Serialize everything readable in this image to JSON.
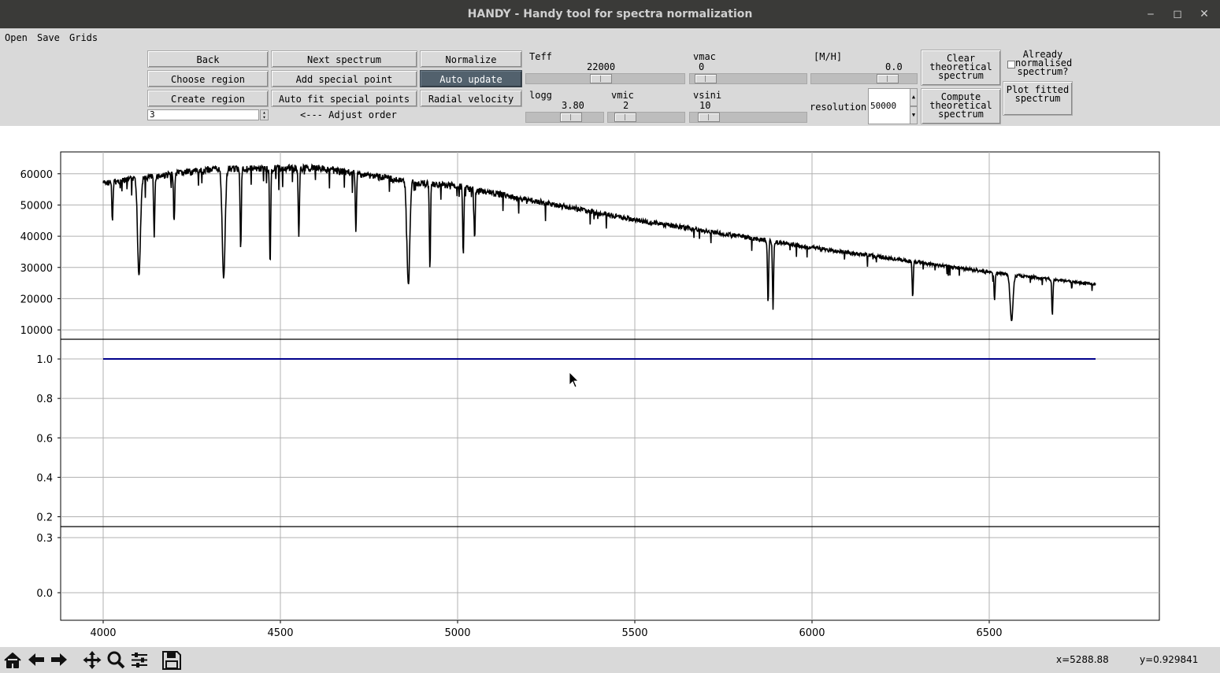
{
  "window": {
    "title": "HANDY - Handy tool for spectra normalization",
    "minimize": "‒",
    "maximize": "◻",
    "close": "✕"
  },
  "menu": [
    "Open",
    "Save",
    "Grids"
  ],
  "buttons": {
    "back": "Back",
    "next_spectrum": "Next spectrum",
    "normalize": "Normalize",
    "choose_region": "Choose region",
    "add_special_point": "Add special point",
    "auto_update": "Auto update",
    "create_region": "Create region",
    "auto_fit": "Auto fit special points",
    "radial_velocity": "Radial velocity",
    "clear_theoretical": "Clear theoretical spectrum",
    "compute_theoretical": "Compute theoretical spectrum",
    "plot_fitted": "Plot fitted spectrum"
  },
  "order_input": {
    "value": "3",
    "hint": "<--- Adjust order"
  },
  "params": {
    "teff": {
      "label": "Teff",
      "value": "22000",
      "fraction": 0.47
    },
    "vmac": {
      "label": "vmac",
      "value": "0",
      "fraction": 0.05
    },
    "mh": {
      "label": "[M/H]",
      "value": "0.0",
      "fraction": 0.78
    },
    "logg": {
      "label": "logg",
      "value": "3.80",
      "fraction": 0.62
    },
    "vmic": {
      "label": "vmic",
      "value": "2",
      "fraction": 0.12
    },
    "vsini": {
      "label": "vsini",
      "value": "10",
      "fraction": 0.08
    },
    "resolution": {
      "label": "resolution",
      "value": "50000"
    }
  },
  "checkbox": {
    "label": "Already normalised spectrum?",
    "checked": false
  },
  "status": {
    "x": "x=5288.88",
    "y": "y=0.929841"
  },
  "toolbar_icons": [
    "home-icon",
    "back-arrow-icon",
    "forward-arrow-icon",
    "pan-icon",
    "zoom-icon",
    "configure-subplots-icon",
    "save-figure-icon"
  ],
  "chart_data": [
    {
      "type": "line",
      "panel": "spectrum",
      "x_range": [
        3880,
        6980
      ],
      "xticks": [
        4000,
        4500,
        5000,
        5500,
        6000,
        6500
      ],
      "ylim": [
        7000,
        67000
      ],
      "yticks": [
        10000,
        20000,
        30000,
        40000,
        50000,
        60000
      ],
      "grid": true,
      "series": [
        {
          "color": "#000000",
          "continuum": [
            [
              4000,
              58000
            ],
            [
              4300,
              62500
            ],
            [
              4600,
              63000
            ],
            [
              4900,
              58000
            ],
            [
              5000,
              57000
            ],
            [
              5500,
              46000
            ],
            [
              6000,
              37000
            ],
            [
              6500,
              29000
            ],
            [
              6800,
              25000
            ]
          ],
          "lines": [
            [
              4026,
              45000
            ],
            [
              4101,
              28000
            ],
            [
              4144,
              40000
            ],
            [
              4200,
              46000
            ],
            [
              4340,
              27000
            ],
            [
              4388,
              37000
            ],
            [
              4471,
              31000
            ],
            [
              4552,
              40000
            ],
            [
              4713,
              42000
            ],
            [
              4861,
              25000
            ],
            [
              4922,
              30000
            ],
            [
              5016,
              34000
            ],
            [
              5048,
              40000
            ],
            [
              5876,
              19000
            ],
            [
              5890,
              17000
            ],
            [
              6284,
              21000
            ],
            [
              6515,
              20000
            ],
            [
              6563,
              13000
            ],
            [
              6678,
              15000
            ]
          ]
        }
      ]
    },
    {
      "type": "line",
      "panel": "normalized",
      "x_range": [
        3880,
        6980
      ],
      "ylim": [
        0.15,
        1.1
      ],
      "yticks": [
        0.2,
        0.4,
        0.6,
        0.8,
        1.0
      ],
      "grid": true,
      "series": [
        {
          "color": "#00008b",
          "x": [
            4000,
            6800
          ],
          "y": [
            1.0,
            1.0
          ]
        }
      ]
    },
    {
      "type": "line",
      "panel": "residual",
      "x_range": [
        3880,
        6980
      ],
      "ylim": [
        -0.15,
        0.36
      ],
      "yticks": [
        0.0,
        0.3
      ],
      "grid": true,
      "series": []
    }
  ]
}
